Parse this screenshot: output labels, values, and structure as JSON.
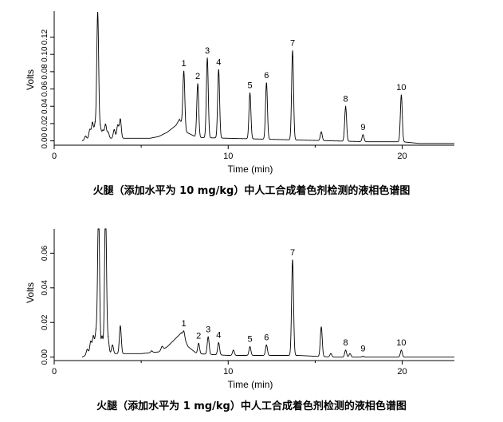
{
  "chart_data": [
    {
      "type": "line",
      "title": "火腿（添加水平为 10 mg/kg）中人工合成着色剂检测的液相色谱图",
      "xlabel": "Time (min)",
      "ylabel": "Volts",
      "xlim": [
        0,
        23
      ],
      "ylim": [
        -0.005,
        0.15
      ],
      "x_ticks": [
        "0",
        "10",
        "20"
      ],
      "y_ticks": [
        "0.00",
        "0.02",
        "0.04",
        "0.06",
        "0.08",
        "0.10",
        "0.12"
      ],
      "grid": false,
      "baseline": [
        [
          1.6,
          0.0
        ],
        [
          2.0,
          0.003
        ],
        [
          5.5,
          0.003
        ],
        [
          6.0,
          0.005
        ],
        [
          6.5,
          0.01
        ],
        [
          7.0,
          0.018
        ],
        [
          7.2,
          0.025
        ],
        [
          7.6,
          0.01
        ],
        [
          8.2,
          0.004
        ],
        [
          10.0,
          0.003
        ],
        [
          12.0,
          0.002
        ],
        [
          14.0,
          0.001
        ],
        [
          16.0,
          0.0
        ],
        [
          18.0,
          -0.001
        ],
        [
          20.0,
          -0.001
        ],
        [
          21.0,
          -0.003
        ],
        [
          23.0,
          -0.003
        ]
      ],
      "peaks": [
        {
          "t": 1.8,
          "h": 0.004
        },
        {
          "t": 2.05,
          "h": 0.01
        },
        {
          "t": 2.2,
          "h": 0.018
        },
        {
          "t": 2.35,
          "h": 0.015
        },
        {
          "t": 2.5,
          "h": 0.145
        },
        {
          "t": 2.65,
          "h": 0.012
        },
        {
          "t": 2.8,
          "h": 0.009
        },
        {
          "t": 2.95,
          "h": 0.016
        },
        {
          "t": 3.1,
          "h": 0.007
        },
        {
          "t": 3.45,
          "h": 0.01
        },
        {
          "t": 3.65,
          "h": 0.015
        },
        {
          "t": 3.8,
          "h": 0.022
        },
        {
          "t": 7.45,
          "label": "1",
          "h": 0.065
        },
        {
          "t": 8.25,
          "label": "2",
          "h": 0.062
        },
        {
          "t": 8.8,
          "label": "3",
          "h": 0.092
        },
        {
          "t": 9.45,
          "label": "4",
          "h": 0.079
        },
        {
          "t": 11.25,
          "label": "5",
          "h": 0.053
        },
        {
          "t": 12.2,
          "label": "6",
          "h": 0.065
        },
        {
          "t": 13.7,
          "label": "7",
          "h": 0.103
        },
        {
          "t": 15.35,
          "h": 0.01
        },
        {
          "t": 16.75,
          "label": "8",
          "h": 0.04
        },
        {
          "t": 17.75,
          "label": "9",
          "h": 0.008
        },
        {
          "t": 19.95,
          "label": "10",
          "h": 0.054
        }
      ]
    },
    {
      "type": "line",
      "title": "火腿（添加水平为 1 mg/kg）中人工合成着色剂检测的液相色谱图",
      "xlabel": "Time (min)",
      "ylabel": "Volts",
      "xlim": [
        0,
        23
      ],
      "ylim": [
        -0.002,
        0.074
      ],
      "x_ticks": [
        "0",
        "10",
        "20"
      ],
      "y_ticks": [
        "0.00",
        "0.02",
        "0.04",
        "0.06"
      ],
      "grid": false,
      "baseline": [
        [
          1.6,
          0.0
        ],
        [
          2.0,
          0.002
        ],
        [
          5.0,
          0.002
        ],
        [
          6.0,
          0.003
        ],
        [
          6.5,
          0.006
        ],
        [
          7.0,
          0.011
        ],
        [
          7.3,
          0.014
        ],
        [
          7.7,
          0.006
        ],
        [
          8.2,
          0.002
        ],
        [
          10.0,
          0.001
        ],
        [
          14.0,
          0.001
        ],
        [
          16.0,
          0.0
        ],
        [
          20.0,
          0.0
        ],
        [
          23.0,
          0.0
        ]
      ],
      "peaks": [
        {
          "t": 1.9,
          "h": 0.003
        },
        {
          "t": 2.1,
          "h": 0.007
        },
        {
          "t": 2.25,
          "h": 0.01
        },
        {
          "t": 2.4,
          "h": 0.012
        },
        {
          "t": 2.55,
          "h": 0.085
        },
        {
          "t": 2.75,
          "h": 0.01
        },
        {
          "t": 2.95,
          "h": 0.085
        },
        {
          "t": 3.1,
          "h": 0.008
        },
        {
          "t": 3.35,
          "h": 0.005
        },
        {
          "t": 3.8,
          "h": 0.016
        },
        {
          "t": 5.6,
          "h": 0.001
        },
        {
          "t": 6.2,
          "h": 0.002
        },
        {
          "t": 7.45,
          "label": "1",
          "h": 0.004
        },
        {
          "t": 8.3,
          "label": "2",
          "h": 0.006
        },
        {
          "t": 8.85,
          "label": "3",
          "h": 0.01
        },
        {
          "t": 9.45,
          "label": "4",
          "h": 0.007
        },
        {
          "t": 10.3,
          "h": 0.003
        },
        {
          "t": 11.25,
          "label": "5",
          "h": 0.005
        },
        {
          "t": 12.2,
          "label": "6",
          "h": 0.006
        },
        {
          "t": 13.7,
          "label": "7",
          "h": 0.055
        },
        {
          "t": 15.35,
          "h": 0.017
        },
        {
          "t": 15.9,
          "h": 0.002
        },
        {
          "t": 16.75,
          "label": "8",
          "h": 0.004
        },
        {
          "t": 17.0,
          "h": 0.002
        },
        {
          "t": 17.75,
          "label": "9",
          "h": 0.0005
        },
        {
          "t": 19.95,
          "label": "10",
          "h": 0.004
        }
      ]
    }
  ]
}
